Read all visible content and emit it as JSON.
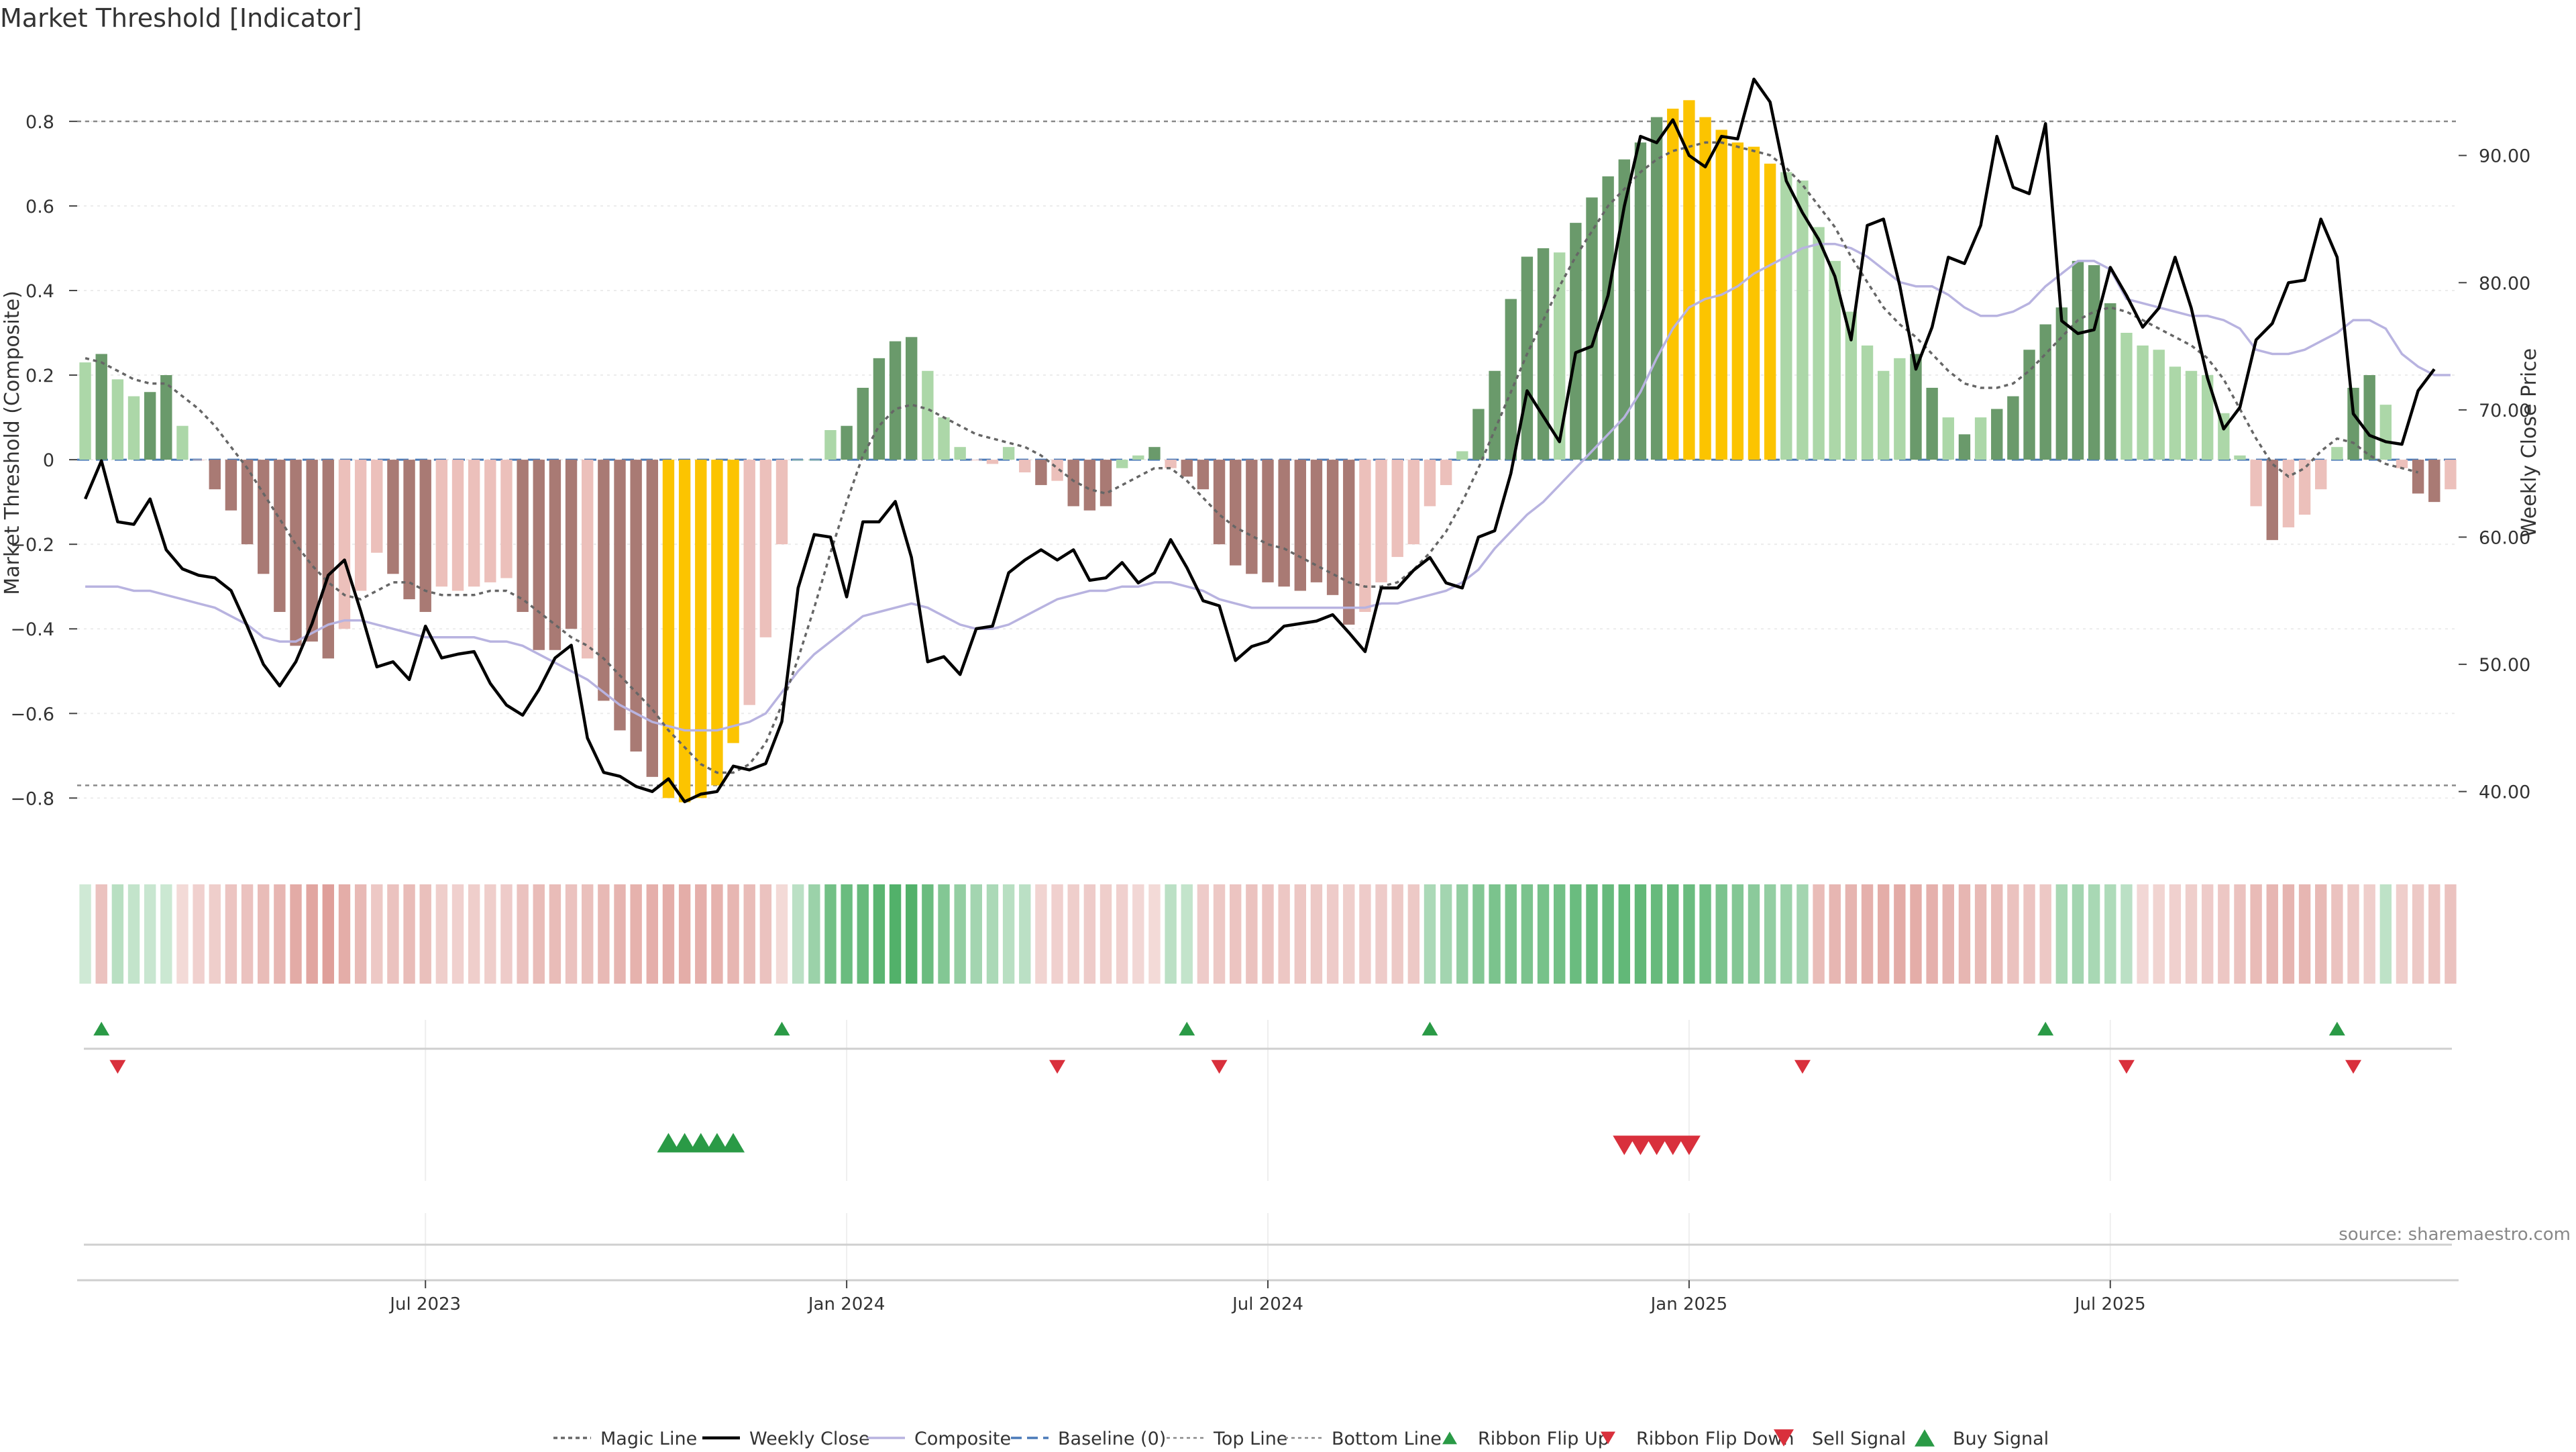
{
  "title": "Market Threshold [Indicator]",
  "source": "source: sharemaestro.com",
  "colors": {
    "green_dark": "#6a9a6b",
    "green_light": "#acd7a8",
    "red_dark": "#a97a74",
    "red_light": "#ecc0bb",
    "gold": "#fcc400",
    "magic_line": "#666666",
    "weekly_close": "#000000",
    "composite": "#b8b3e0",
    "baseline": "#4a7ab8",
    "buy_signal": "#2a9a46",
    "sell_signal": "#d9303c"
  },
  "chart_data": {
    "type": "bar",
    "title": "Market Threshold [Indicator]",
    "ylabel": "Market Threshold (Composite)",
    "y2label": "Weekly Close Price",
    "ylim": [
      -0.92,
      0.96
    ],
    "y2lim": [
      35.5,
      98
    ],
    "yticks": [
      -0.8,
      -0.6,
      -0.4,
      -0.2,
      0,
      0.2,
      0.4,
      0.6,
      0.8
    ],
    "ytick_labels": [
      "−0.8",
      "−0.6",
      "−0.4",
      "−0.2",
      "0",
      "0.2",
      "0.4",
      "0.6",
      "0.8"
    ],
    "y2ticks": [
      40,
      50,
      60,
      70,
      80,
      90
    ],
    "y2tick_labels": [
      "40.00",
      "50.00",
      "60.00",
      "70.00",
      "80.00",
      "90.00"
    ],
    "x_ticks": [
      {
        "label": "Jul 2023",
        "index": 21
      },
      {
        "label": "Jan 2024",
        "index": 47
      },
      {
        "label": "Jul 2024",
        "index": 73
      },
      {
        "label": "Jan 2025",
        "index": 99
      },
      {
        "label": "Jul 2025",
        "index": 125
      }
    ],
    "top_line": 0.8,
    "bottom_line": -0.77,
    "grid": true,
    "legend_position": "bottom-center",
    "threshold_values": [
      0.23,
      0.25,
      0.19,
      0.15,
      0.16,
      0.2,
      0.08,
      0,
      -0.07,
      -0.12,
      -0.2,
      -0.27,
      -0.36,
      -0.44,
      -0.43,
      -0.47,
      -0.4,
      -0.31,
      -0.22,
      -0.27,
      -0.33,
      -0.36,
      -0.3,
      -0.31,
      -0.3,
      -0.29,
      -0.28,
      -0.36,
      -0.45,
      -0.45,
      -0.4,
      -0.47,
      -0.57,
      -0.64,
      -0.69,
      -0.75,
      -0.8,
      -0.81,
      -0.8,
      -0.77,
      -0.67,
      -0.58,
      -0.42,
      -0.2,
      0,
      0,
      0.07,
      0.08,
      0.17,
      0.24,
      0.28,
      0.29,
      0.21,
      0.1,
      0.03,
      0,
      -0.01,
      0.03,
      -0.03,
      -0.06,
      -0.05,
      -0.11,
      -0.12,
      -0.11,
      -0.02,
      0.01,
      0.03,
      -0.02,
      -0.04,
      -0.07,
      -0.2,
      -0.25,
      -0.27,
      -0.29,
      -0.3,
      -0.31,
      -0.29,
      -0.32,
      -0.39,
      -0.36,
      -0.29,
      -0.23,
      -0.2,
      -0.11,
      -0.06,
      0.02,
      0.12,
      0.21,
      0.38,
      0.48,
      0.5,
      0.49,
      0.56,
      0.62,
      0.67,
      0.71,
      0.75,
      0.81,
      0.83,
      0.85,
      0.81,
      0.78,
      0.75,
      0.74,
      0.7,
      0.68,
      0.66,
      0.55,
      0.47,
      0.35,
      0.27,
      0.21,
      0.24,
      0.25,
      0.17,
      0.1,
      0.06,
      0.1,
      0.12,
      0.15,
      0.26,
      0.32,
      0.36,
      0.47,
      0.46,
      0.37,
      0.3,
      0.27,
      0.26,
      0.22,
      0.21,
      0.2,
      0.11,
      0.01,
      -0.11,
      -0.19,
      -0.16,
      -0.13,
      -0.07,
      0.03,
      0.17,
      0.2,
      0.13,
      -0.02,
      -0.08,
      -0.1,
      -0.07
    ],
    "threshold_colors": [
      "gl",
      "gd",
      "gl",
      "gl",
      "gd",
      "gd",
      "gl",
      "rl",
      "rd",
      "rd",
      "rd",
      "rd",
      "rd",
      "rd",
      "rd",
      "rd",
      "rl",
      "rl",
      "rl",
      "rd",
      "rd",
      "rd",
      "rl",
      "rl",
      "rl",
      "rl",
      "rl",
      "rd",
      "rd",
      "rd",
      "rd",
      "rl",
      "rd",
      "rd",
      "rd",
      "rd",
      "gold",
      "gold",
      "gold",
      "gold",
      "gold",
      "rl",
      "rl",
      "rl",
      "gl",
      "gl",
      "gl",
      "gd",
      "gd",
      "gd",
      "gd",
      "gd",
      "gl",
      "gl",
      "gl",
      "rl",
      "rl",
      "gl",
      "rl",
      "rd",
      "rl",
      "rd",
      "rd",
      "rd",
      "gl",
      "gl",
      "gd",
      "rl",
      "rd",
      "rd",
      "rd",
      "rd",
      "rd",
      "rd",
      "rd",
      "rd",
      "rd",
      "rd",
      "rd",
      "rl",
      "rl",
      "rl",
      "rl",
      "rl",
      "rl",
      "gl",
      "gd",
      "gd",
      "gd",
      "gd",
      "gd",
      "gl",
      "gd",
      "gd",
      "gd",
      "gd",
      "gd",
      "gd",
      "gold",
      "gold",
      "gold",
      "gold",
      "gold",
      "gold",
      "gold",
      "gl",
      "gl",
      "gl",
      "gl",
      "gl",
      "gl",
      "gl",
      "gl",
      "gd",
      "gd",
      "gl",
      "gd",
      "gl",
      "gd",
      "gd",
      "gd",
      "gd",
      "gd",
      "gd",
      "gd",
      "gd",
      "gl",
      "gl",
      "gl",
      "gl",
      "gl",
      "gl",
      "gl",
      "gl",
      "rl",
      "rd",
      "rl",
      "rl",
      "rl",
      "gl",
      "gd",
      "gd",
      "gl",
      "rl",
      "rd",
      "rd",
      "rl"
    ],
    "weekly_close": [
      63,
      66,
      61.2,
      61,
      63,
      59,
      57.5,
      57,
      56.8,
      55.8,
      53,
      50,
      48.3,
      50.2,
      53.2,
      57,
      58.2,
      54.2,
      49.8,
      50.2,
      48.8,
      53,
      50.5,
      50.8,
      51,
      48.5,
      46.8,
      46,
      48,
      50.5,
      51.5,
      44.2,
      41.5,
      41.2,
      40.4,
      40,
      41,
      39.2,
      39.8,
      40,
      42,
      41.7,
      42.2,
      45.5,
      56,
      60.2,
      60,
      55.3,
      61.2,
      61.2,
      62.8,
      58.4,
      50.2,
      50.6,
      49.2,
      52.8,
      53,
      57.2,
      58.2,
      59,
      58.2,
      59,
      56.6,
      56.8,
      58,
      56.4,
      57.2,
      59.8,
      57.6,
      55,
      54.6,
      50.3,
      51.4,
      51.8,
      53,
      53.2,
      53.4,
      53.9,
      52.5,
      51,
      56,
      56,
      57.4,
      58.4,
      56.4,
      56,
      60,
      60.5,
      65,
      71.5,
      69.5,
      67.5,
      74.5,
      75,
      79,
      86,
      91.5,
      91,
      92.8,
      90,
      89.1,
      91.5,
      91.3,
      96,
      94.2,
      88,
      85.5,
      83.4,
      80.5,
      75.5,
      84.5,
      85,
      79.8,
      73.2,
      76.5,
      82,
      81.5,
      84.5,
      91.5,
      87.5,
      87,
      92.5,
      77,
      76,
      76.3,
      81.2,
      79,
      76.5,
      78,
      82,
      78,
      72.5,
      68.5,
      70.2,
      75.5,
      76.8,
      80,
      80.2,
      85,
      82,
      69.7,
      68,
      67.5,
      67.3,
      71.5,
      73.2
    ],
    "magic_line": [
      0.24,
      0.23,
      0.21,
      0.19,
      0.18,
      0.18,
      0.15,
      0.12,
      0.08,
      0.03,
      -0.02,
      -0.08,
      -0.14,
      -0.2,
      -0.25,
      -0.29,
      -0.32,
      -0.33,
      -0.31,
      -0.29,
      -0.29,
      -0.31,
      -0.32,
      -0.32,
      -0.32,
      -0.31,
      -0.31,
      -0.33,
      -0.36,
      -0.39,
      -0.42,
      -0.44,
      -0.47,
      -0.51,
      -0.55,
      -0.59,
      -0.64,
      -0.68,
      -0.72,
      -0.74,
      -0.74,
      -0.72,
      -0.67,
      -0.58,
      -0.47,
      -0.35,
      -0.22,
      -0.1,
      0.01,
      0.08,
      0.12,
      0.13,
      0.12,
      0.1,
      0.08,
      0.06,
      0.05,
      0.04,
      0.03,
      0.01,
      -0.02,
      -0.05,
      -0.07,
      -0.08,
      -0.06,
      -0.04,
      -0.02,
      -0.02,
      -0.05,
      -0.09,
      -0.13,
      -0.16,
      -0.18,
      -0.2,
      -0.21,
      -0.23,
      -0.25,
      -0.27,
      -0.29,
      -0.3,
      -0.3,
      -0.29,
      -0.26,
      -0.22,
      -0.17,
      -0.1,
      -0.02,
      0.07,
      0.16,
      0.25,
      0.33,
      0.41,
      0.48,
      0.54,
      0.6,
      0.64,
      0.68,
      0.71,
      0.73,
      0.74,
      0.75,
      0.75,
      0.74,
      0.73,
      0.72,
      0.69,
      0.65,
      0.6,
      0.55,
      0.48,
      0.42,
      0.36,
      0.32,
      0.29,
      0.25,
      0.21,
      0.18,
      0.17,
      0.17,
      0.18,
      0.21,
      0.25,
      0.29,
      0.33,
      0.35,
      0.36,
      0.35,
      0.33,
      0.31,
      0.29,
      0.27,
      0.24,
      0.19,
      0.12,
      0.05,
      -0.01,
      -0.04,
      -0.02,
      0.02,
      0.05,
      0.04,
      0.01,
      -0.01,
      -0.02,
      -0.03
    ],
    "composite": [
      -0.3,
      -0.3,
      -0.3,
      -0.31,
      -0.31,
      -0.32,
      -0.33,
      -0.34,
      -0.35,
      -0.37,
      -0.39,
      -0.42,
      -0.43,
      -0.43,
      -0.41,
      -0.39,
      -0.38,
      -0.38,
      -0.39,
      -0.4,
      -0.41,
      -0.42,
      -0.42,
      -0.42,
      -0.42,
      -0.43,
      -0.43,
      -0.44,
      -0.46,
      -0.48,
      -0.5,
      -0.52,
      -0.55,
      -0.58,
      -0.6,
      -0.62,
      -0.63,
      -0.64,
      -0.64,
      -0.64,
      -0.63,
      -0.62,
      -0.6,
      -0.55,
      -0.5,
      -0.46,
      -0.43,
      -0.4,
      -0.37,
      -0.36,
      -0.35,
      -0.34,
      -0.35,
      -0.37,
      -0.39,
      -0.4,
      -0.4,
      -0.39,
      -0.37,
      -0.35,
      -0.33,
      -0.32,
      -0.31,
      -0.31,
      -0.3,
      -0.3,
      -0.29,
      -0.29,
      -0.3,
      -0.31,
      -0.33,
      -0.34,
      -0.35,
      -0.35,
      -0.35,
      -0.35,
      -0.35,
      -0.35,
      -0.35,
      -0.35,
      -0.34,
      -0.34,
      -0.33,
      -0.32,
      -0.31,
      -0.29,
      -0.26,
      -0.21,
      -0.17,
      -0.13,
      -0.1,
      -0.06,
      -0.02,
      0.02,
      0.06,
      0.1,
      0.16,
      0.24,
      0.31,
      0.36,
      0.38,
      0.39,
      0.41,
      0.44,
      0.46,
      0.48,
      0.5,
      0.51,
      0.51,
      0.5,
      0.48,
      0.45,
      0.42,
      0.41,
      0.41,
      0.39,
      0.36,
      0.34,
      0.34,
      0.35,
      0.37,
      0.41,
      0.44,
      0.47,
      0.47,
      0.45,
      0.38,
      0.37,
      0.36,
      0.35,
      0.34,
      0.34,
      0.33,
      0.31,
      0.26,
      0.25,
      0.25,
      0.26,
      0.28,
      0.3,
      0.33,
      0.33,
      0.31,
      0.25,
      0.22,
      0.2,
      0.2
    ],
    "ribbon_values": [
      0.08,
      -0.3,
      0.22,
      0.15,
      0.12,
      0.1,
      -0.1,
      -0.18,
      -0.2,
      -0.28,
      -0.3,
      -0.35,
      -0.4,
      -0.5,
      -0.55,
      -0.6,
      -0.48,
      -0.38,
      -0.25,
      -0.3,
      -0.35,
      -0.32,
      -0.2,
      -0.18,
      -0.2,
      -0.2,
      -0.22,
      -0.3,
      -0.35,
      -0.35,
      -0.3,
      -0.32,
      -0.38,
      -0.42,
      -0.44,
      -0.46,
      -0.48,
      -0.48,
      -0.46,
      -0.44,
      -0.4,
      -0.35,
      -0.3,
      -0.1,
      0.2,
      0.4,
      0.65,
      0.7,
      0.72,
      0.8,
      0.85,
      0.85,
      0.7,
      0.55,
      0.45,
      0.35,
      0.3,
      0.22,
      0.2,
      -0.15,
      -0.18,
      -0.2,
      -0.22,
      -0.2,
      -0.18,
      -0.12,
      -0.1,
      0.2,
      0.15,
      -0.22,
      -0.25,
      -0.28,
      -0.3,
      -0.28,
      -0.26,
      -0.26,
      -0.24,
      -0.22,
      -0.2,
      -0.22,
      -0.22,
      -0.24,
      -0.24,
      0.3,
      0.35,
      0.45,
      0.55,
      0.6,
      0.62,
      0.6,
      0.62,
      0.65,
      0.7,
      0.72,
      0.72,
      0.75,
      0.75,
      0.72,
      0.72,
      0.7,
      0.66,
      0.6,
      0.55,
      0.5,
      0.45,
      0.4,
      0.35,
      -0.35,
      -0.4,
      -0.42,
      -0.45,
      -0.48,
      -0.5,
      -0.48,
      -0.45,
      -0.42,
      -0.4,
      -0.38,
      -0.35,
      -0.3,
      -0.28,
      -0.25,
      0.32,
      0.35,
      0.32,
      0.28,
      0.2,
      -0.12,
      -0.15,
      -0.18,
      -0.2,
      -0.22,
      -0.26,
      -0.3,
      -0.36,
      -0.4,
      -0.42,
      -0.4,
      -0.38,
      -0.3,
      -0.25,
      -0.2,
      0.18,
      -0.2,
      -0.24,
      -0.28,
      -0.3
    ],
    "ribbon_flip_up_indices": [
      1,
      43,
      68,
      83,
      121,
      139
    ],
    "ribbon_flip_down_indices": [
      2,
      60,
      70,
      106,
      126,
      140
    ],
    "buy_signal_indices": [
      36,
      37,
      38,
      39,
      40
    ],
    "sell_signal_indices": [
      95,
      96,
      97,
      98,
      99
    ],
    "legend": [
      {
        "key": "magic_line",
        "label": "Magic Line"
      },
      {
        "key": "weekly_close",
        "label": "Weekly Close"
      },
      {
        "key": "composite",
        "label": "Composite"
      },
      {
        "key": "baseline",
        "label": "Baseline (0)"
      },
      {
        "key": "top_line",
        "label": "Top Line"
      },
      {
        "key": "bottom_line",
        "label": "Bottom Line"
      },
      {
        "key": "ribbon_flip_up",
        "label": "Ribbon Flip Up"
      },
      {
        "key": "ribbon_flip_down",
        "label": "Ribbon Flip Down"
      },
      {
        "key": "sell_signal",
        "label": "Sell Signal"
      },
      {
        "key": "buy_signal",
        "label": "Buy Signal"
      }
    ]
  }
}
